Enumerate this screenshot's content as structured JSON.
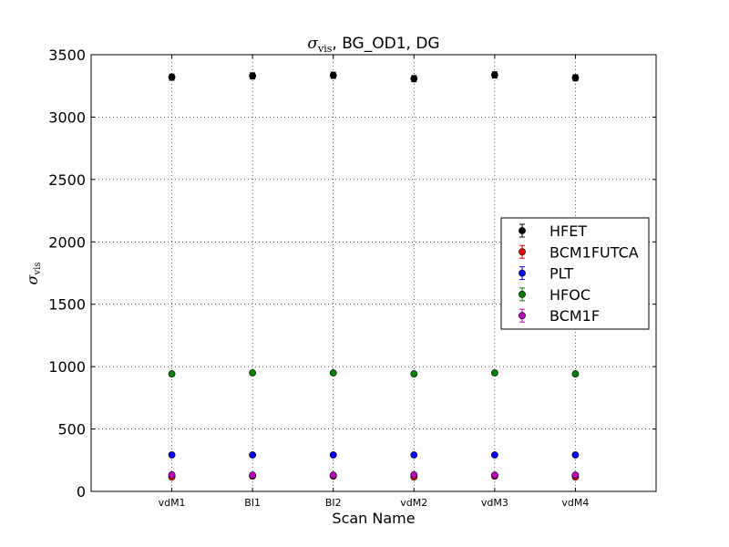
{
  "chart_data": {
    "type": "scatter",
    "title": {
      "symbol": "σ",
      "subscript": "vis",
      "rest": ", BG_OD1, DG"
    },
    "xlabel": "Scan Name",
    "ylabel": {
      "symbol": "σ",
      "subscript": "vis"
    },
    "categories": [
      "vdM1",
      "BI1",
      "BI2",
      "vdM2",
      "vdM3",
      "vdM4"
    ],
    "ylim": [
      0,
      3500
    ],
    "yticks": [
      0,
      500,
      1000,
      1500,
      2000,
      2500,
      3000,
      3500
    ],
    "grid": true,
    "legend_position": "right",
    "series": [
      {
        "name": "HFET",
        "color": "#000000",
        "values": [
          3320,
          3330,
          3335,
          3308,
          3338,
          3315
        ],
        "errors": [
          25,
          25,
          25,
          25,
          25,
          25
        ]
      },
      {
        "name": "BCM1FUTCA",
        "color": "#ff0000",
        "values": [
          115,
          122,
          122,
          115,
          122,
          115
        ],
        "errors": [
          8,
          8,
          8,
          8,
          8,
          8
        ]
      },
      {
        "name": "PLT",
        "color": "#0000ff",
        "values": [
          292,
          292,
          292,
          292,
          292,
          292
        ],
        "errors": [
          6,
          6,
          6,
          6,
          6,
          6
        ]
      },
      {
        "name": "HFOC",
        "color": "#007f00",
        "values": [
          942,
          950,
          950,
          942,
          950,
          942
        ],
        "errors": [
          8,
          8,
          8,
          8,
          8,
          8
        ]
      },
      {
        "name": "BCM1F",
        "color": "#bf00bf",
        "values": [
          132,
          130,
          130,
          132,
          130,
          130
        ],
        "errors": [
          8,
          8,
          8,
          8,
          8,
          8
        ]
      }
    ]
  }
}
